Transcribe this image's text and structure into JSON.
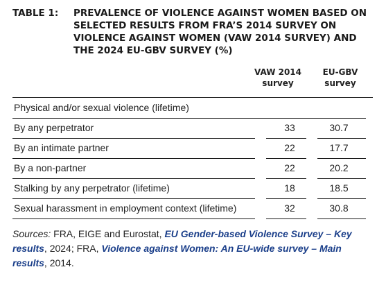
{
  "caption": {
    "label": "TABLE 1:",
    "text": "PREVALENCE OF VIOLENCE AGAINST WOMEN BASED ON SELECTED RESULTS FROM FRA’S 2014 SURVEY ON VIOLENCE AGAINST WOMEN (VAW 2014 SURVEY) AND THE 2024 EU-GBV SURVEY (%)"
  },
  "columns": {
    "col1_line1": "VAW 2014",
    "col1_line2": "survey",
    "col2_line1": "EU-GBV",
    "col2_line2": "survey"
  },
  "rows": [
    {
      "label": "Physical and/or sexual violence (lifetime)",
      "v1": "",
      "v2": ""
    },
    {
      "label": "By any perpetrator",
      "v1": "33",
      "v2": "30.7"
    },
    {
      "label": "By an intimate partner",
      "v1": "22",
      "v2": "17.7"
    },
    {
      "label": "By a non-partner",
      "v1": "22",
      "v2": "20.2"
    },
    {
      "label": "Stalking by any perpetrator (lifetime)",
      "v1": "18",
      "v2": "18.5"
    },
    {
      "label": "Sexual harassment in employment context (lifetime)",
      "v1": "32",
      "v2": "30.8"
    }
  ],
  "sources": {
    "prefix": "Sources:",
    "part1": " FRA, EIGE and Eurostat, ",
    "link1": "EU Gender-based Violence Survey – Key results",
    "part2": ", 2024; FRA, ",
    "link2": "Violence against Women: An EU-wide survey – Main results",
    "part3": ", 2014."
  }
}
